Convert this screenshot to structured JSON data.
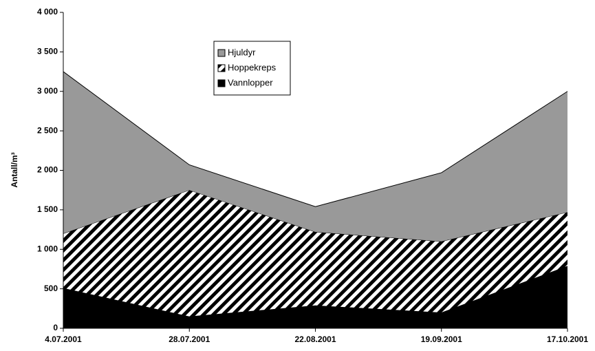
{
  "chart_data": {
    "type": "stacked_area",
    "y_label": "Antall/m³",
    "categories": [
      "4.07.2001",
      "28.07.2001",
      "22.08.2001",
      "19.09.2001",
      "17.10.2001"
    ],
    "series": [
      {
        "name": "Vannlopper",
        "color": "#000000",
        "pattern": "solid",
        "values": [
          510,
          150,
          290,
          200,
          790
        ]
      },
      {
        "name": "Hoppekreps",
        "color": "#000000",
        "pattern": "diagonal",
        "values": [
          690,
          1600,
          930,
          900,
          680
        ]
      },
      {
        "name": "Hjuldyr",
        "color": "#999999",
        "pattern": "solid",
        "values": [
          2050,
          320,
          320,
          870,
          1530
        ]
      }
    ],
    "ylim": [
      0,
      4000
    ],
    "yticks": [
      0,
      500,
      {
        "value": 1000,
        "label": "1 000"
      },
      {
        "value": 1500,
        "label": "1 500"
      },
      {
        "value": 2000,
        "label": "2 000"
      },
      {
        "value": 2500,
        "label": "2 500"
      },
      {
        "value": 3000,
        "label": "3 000"
      },
      {
        "value": 3500,
        "label": "3 500"
      },
      {
        "value": 4000,
        "label": "4 000"
      }
    ]
  }
}
